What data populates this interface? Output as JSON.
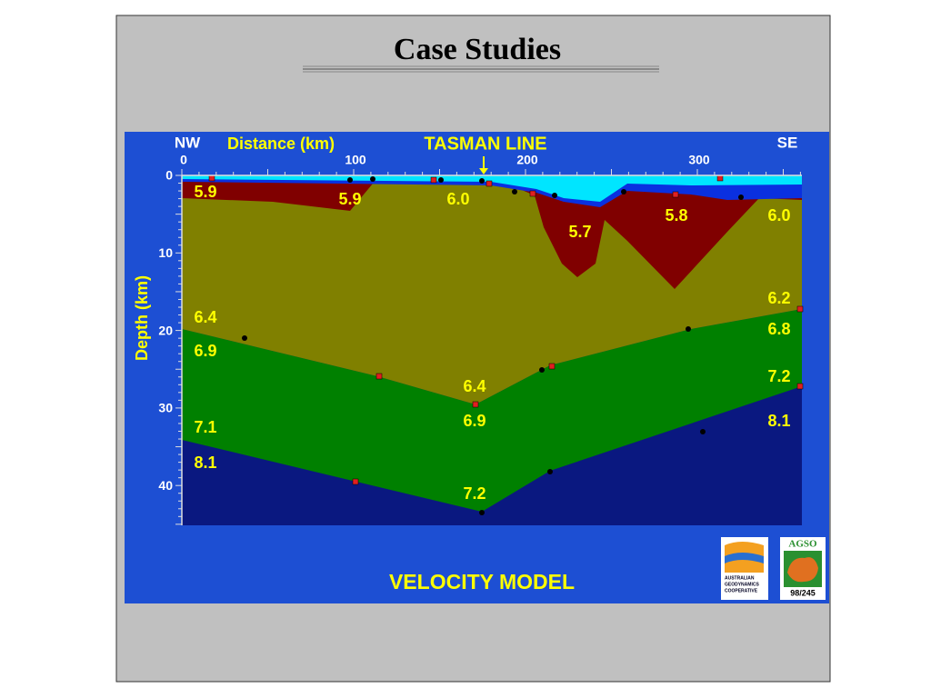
{
  "slide": {
    "title": "Case Studies"
  },
  "figure": {
    "title": "TASMAN LINE",
    "left_label": "NW",
    "right_label": "SE",
    "x_axis_label": "Distance (km)",
    "y_axis_label": "Depth (km)",
    "x_ticks": [
      "0",
      "100",
      "200",
      "300"
    ],
    "y_ticks": [
      "0",
      "10",
      "20",
      "30",
      "40"
    ],
    "velocity_labels": [
      "5.9",
      "5.9",
      "6.0",
      "5.7",
      "5.8",
      "6.0",
      "6.2",
      "6.4",
      "6.8",
      "6.9",
      "7.2",
      "6.4",
      "6.9",
      "8.1",
      "7.1",
      "8.1",
      "7.2"
    ],
    "caption": "VELOCITY MODEL"
  },
  "logos": {
    "agcrc": [
      "AUSTRALIAN",
      "GEODYNAMICS",
      "COOPERATIVE"
    ],
    "agso": "AGSO",
    "code": "98/245"
  }
}
